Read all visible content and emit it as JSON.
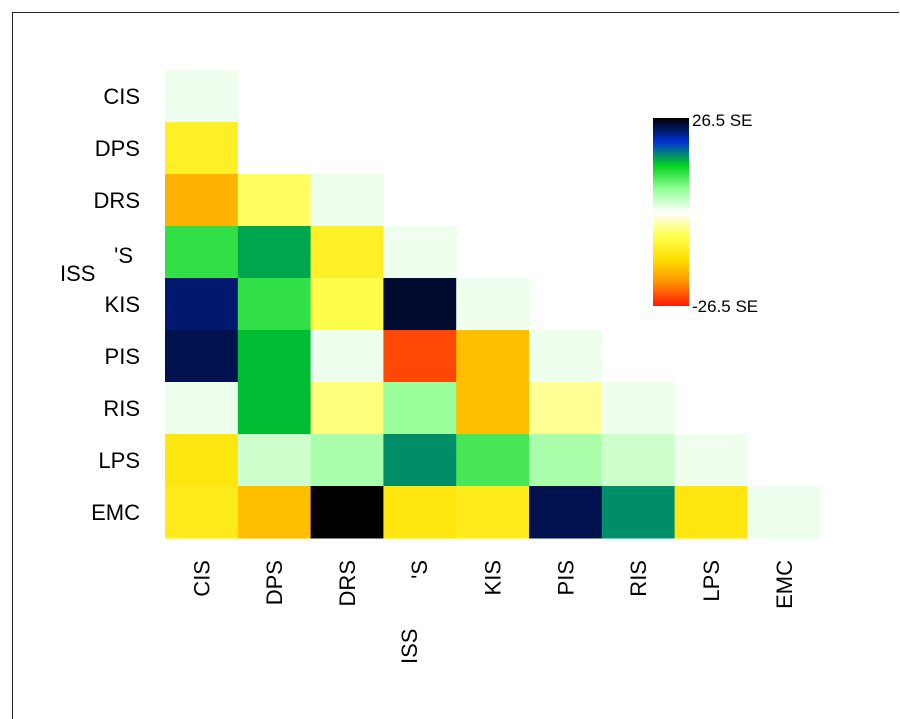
{
  "chart_data": {
    "type": "heatmap",
    "title": "",
    "xlabel": "",
    "ylabel": "",
    "rows": [
      "CIS",
      "DPS",
      "DRS",
      "ISS",
      "KIS",
      "PIS",
      "RIS",
      "LPS",
      "EMC"
    ],
    "columns": [
      "CIS",
      "DPS",
      "DRS",
      "ISS",
      "KIS",
      "PIS",
      "RIS",
      "LPS",
      "EMC"
    ],
    "row_labels_shown": [
      "CIS",
      "DPS",
      "DRS",
      "",
      "KIS",
      "PIS",
      "RIS",
      "LPS",
      "EMC"
    ],
    "column_labels_shown": [
      "CIS",
      "DPS",
      "DRS",
      "",
      "KIS",
      "PIS",
      "RIS",
      "LPS",
      "EMC"
    ],
    "triangle": "lower",
    "values": [
      [
        1
      ],
      [
        -10,
        0
      ],
      [
        -17,
        -6,
        1
      ],
      [
        11,
        15,
        -10,
        1
      ],
      [
        23,
        11,
        -7,
        25,
        1
      ],
      [
        24,
        14,
        1,
        -24,
        -16,
        1
      ],
      [
        1,
        14,
        -5,
        6,
        -16,
        -4,
        1
      ],
      [
        -12,
        3,
        5,
        16,
        10,
        5,
        3,
        1
      ],
      [
        -11,
        -16,
        26.5,
        -12,
        -11,
        24,
        16,
        -12,
        1
      ]
    ],
    "colorbar": {
      "max_label": "26.5 SE",
      "min_label": "-26.5 SE",
      "range": [
        -26.5,
        26.5
      ],
      "colors": [
        "#ff1a0a",
        "#ff9000",
        "#ffe000",
        "#ffff50",
        "#ffffff",
        "#90ff90",
        "#00d020",
        "#0030d0",
        "#000000"
      ]
    }
  },
  "overlays": {
    "row_label_iss": "ISS",
    "col_label_iss": "ISS",
    "row_label_fragment": "'S",
    "col_label_fragment": "'S"
  }
}
